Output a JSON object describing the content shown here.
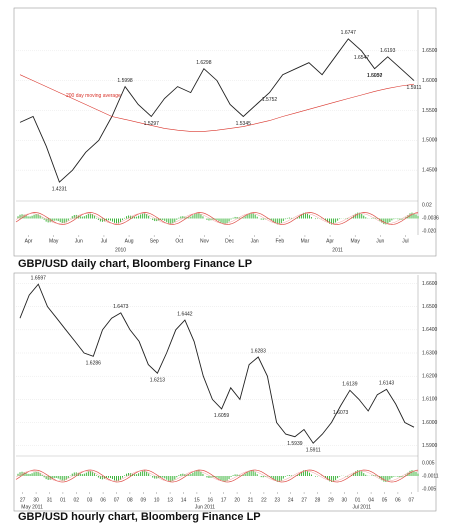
{
  "chart_data": [
    {
      "type": "line",
      "caption": "GBP/USD daily chart, Bloomberg Finance LP",
      "x_labels": [
        "Apr",
        "May",
        "Jun",
        "Jul",
        "Aug",
        "Sep",
        "Oct",
        "Nov",
        "Dec",
        "Jan",
        "Feb",
        "Mar",
        "Apr",
        "May",
        "Jun",
        "Jul"
      ],
      "years": [
        "2010",
        "2011"
      ],
      "series": [
        {
          "name": "GBP/USD",
          "color": "#222222",
          "values": [
            1.53,
            1.54,
            1.49,
            1.43,
            1.45,
            1.48,
            1.5,
            1.54,
            1.59,
            1.56,
            1.54,
            1.57,
            1.59,
            1.58,
            1.62,
            1.6,
            1.56,
            1.54,
            1.56,
            1.58,
            1.61,
            1.62,
            1.63,
            1.61,
            1.64,
            1.67,
            1.65,
            1.62,
            1.64,
            1.62,
            1.6
          ]
        },
        {
          "name": "200 day moving average",
          "color": "#d9342b",
          "values": [
            1.61,
            1.6,
            1.59,
            1.58,
            1.57,
            1.56,
            1.55,
            1.54,
            1.535,
            1.53,
            1.525,
            1.52,
            1.517,
            1.515,
            1.515,
            1.517,
            1.52,
            1.523,
            1.528,
            1.533,
            1.54,
            1.546,
            1.552,
            1.558,
            1.564,
            1.57,
            1.576,
            1.582,
            1.587,
            1.591,
            1.594
          ]
        }
      ],
      "annotations": [
        "1.4231",
        "1.5998",
        "1.5297",
        "1.6298",
        "1.5345",
        "1.5752",
        "1.6747",
        "1.6547",
        "1.5937",
        "1.6050",
        "1.6193",
        "1.5911"
      ],
      "ylim": [
        1.4,
        1.71
      ],
      "yticks": [
        {
          "value": 1.45,
          "label": "1.4500"
        },
        {
          "value": 1.5,
          "label": "1.5000"
        },
        {
          "value": 1.55,
          "label": "1.5500"
        },
        {
          "value": 1.6,
          "label": "1.6000"
        },
        {
          "value": 1.65,
          "label": "1.6500"
        }
      ],
      "indicator_labels": [
        "0.02",
        "-0.0036",
        "-0.020"
      ]
    },
    {
      "type": "line",
      "caption": "GBP/USD hourly chart, Bloomberg Finance LP",
      "x_labels": [
        "27",
        "30",
        "31",
        "01",
        "02",
        "03",
        "06",
        "07",
        "08",
        "09",
        "10",
        "13",
        "14",
        "15",
        "16",
        "17",
        "20",
        "21",
        "22",
        "23",
        "24",
        "27",
        "28",
        "29",
        "30",
        "01",
        "04",
        "05",
        "06",
        "07"
      ],
      "years": [
        "May 2011",
        "Jun 2011",
        "Jul 2011"
      ],
      "series": [
        {
          "name": "GBP/USD",
          "color": "#222222",
          "values": [
            1.645,
            1.655,
            1.6597,
            1.65,
            1.645,
            1.64,
            1.635,
            1.63,
            1.6286,
            1.64,
            1.645,
            1.6473,
            1.64,
            1.635,
            1.625,
            1.6213,
            1.63,
            1.64,
            1.6442,
            1.635,
            1.62,
            1.61,
            1.6059,
            1.615,
            1.61,
            1.625,
            1.6283,
            1.62,
            1.6,
            1.595,
            1.5939,
            1.597,
            1.5911,
            1.595,
            1.6,
            1.6073,
            1.6139,
            1.61,
            1.605,
            1.612,
            1.6143,
            1.608,
            1.6,
            1.598
          ]
        }
      ],
      "annotations": [
        "1.6597",
        "1.6286",
        "1.6473",
        "1.6213",
        "1.6442",
        "1.6059",
        "1.6283",
        "1.5939",
        "1.5911",
        "1.6073",
        "1.6139",
        "1.6143"
      ],
      "ylim": [
        1.586,
        1.6615
      ],
      "yticks": [
        {
          "value": 1.59,
          "label": "1.5900"
        },
        {
          "value": 1.6,
          "label": "1.6000"
        },
        {
          "value": 1.61,
          "label": "1.6100"
        },
        {
          "value": 1.62,
          "label": "1.6200"
        },
        {
          "value": 1.63,
          "label": "1.6300"
        },
        {
          "value": 1.64,
          "label": "1.6400"
        },
        {
          "value": 1.65,
          "label": "1.6500"
        },
        {
          "value": 1.66,
          "label": "1.6600"
        }
      ],
      "indicator_labels": [
        "0.005",
        "-0.0011",
        "-0.005"
      ]
    }
  ]
}
